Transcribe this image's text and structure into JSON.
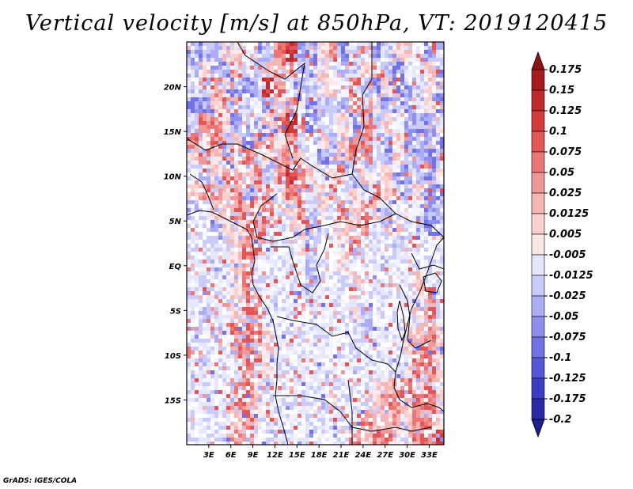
{
  "title": "Vertical velocity [m/s] at 850hPa, VT: 2019120415",
  "credit": "GrADS: IGES/COLA",
  "map": {
    "lon_range": [
      0,
      35
    ],
    "lat_range": [
      -20,
      25
    ],
    "lon_ticks": [
      {
        "value": 3,
        "label": "3E"
      },
      {
        "value": 6,
        "label": "6E"
      },
      {
        "value": 9,
        "label": "9E"
      },
      {
        "value": 12,
        "label": "12E"
      },
      {
        "value": 15,
        "label": "15E"
      },
      {
        "value": 18,
        "label": "18E"
      },
      {
        "value": 21,
        "label": "21E"
      },
      {
        "value": 24,
        "label": "24E"
      },
      {
        "value": 27,
        "label": "27E"
      },
      {
        "value": 30,
        "label": "30E"
      },
      {
        "value": 33,
        "label": "33E"
      }
    ],
    "lat_ticks": [
      {
        "value": 20,
        "label": "20N"
      },
      {
        "value": 15,
        "label": "15N"
      },
      {
        "value": 10,
        "label": "10N"
      },
      {
        "value": 5,
        "label": "5N"
      },
      {
        "value": 0,
        "label": "EQ"
      },
      {
        "value": -5,
        "label": "5S"
      },
      {
        "value": -10,
        "label": "10S"
      },
      {
        "value": -15,
        "label": "15S"
      }
    ]
  },
  "colorbar": {
    "levels": [
      {
        "label": "0.175",
        "color": "#a51c1c"
      },
      {
        "label": "0.15",
        "color": "#c12a2a"
      },
      {
        "label": "0.125",
        "color": "#d43c3c"
      },
      {
        "label": "0.1",
        "color": "#e25656"
      },
      {
        "label": "0.075",
        "color": "#ea7676"
      },
      {
        "label": "0.05",
        "color": "#f09898"
      },
      {
        "label": "0.025",
        "color": "#f6b6b6"
      },
      {
        "label": "0.0125",
        "color": "#fad0d0"
      },
      {
        "label": "0.005",
        "color": "#fde8e8"
      },
      {
        "label": "-0.005",
        "color": "#ffffff"
      },
      {
        "label": "-0.0125",
        "color": "#e6e6fd"
      },
      {
        "label": "-0.025",
        "color": "#cbcbfa"
      },
      {
        "label": "-0.05",
        "color": "#adadf6"
      },
      {
        "label": "-0.075",
        "color": "#8f8ff0"
      },
      {
        "label": "-0.1",
        "color": "#7272e6"
      },
      {
        "label": "-0.125",
        "color": "#5656d8"
      },
      {
        "label": "-0.175",
        "color": "#3c3cc4"
      },
      {
        "label": "-0.2",
        "color": "#2a2aa8"
      }
    ],
    "top_triangle_color": "#8c1616",
    "bottom_triangle_color": "#1e1e90"
  },
  "field": {
    "rows": [
      "ccmsslcmRSccsRcmlcmsslcm",
      "msccRlmsRRccslmmsRcclmsc",
      "lmRsccmSRlcmsslRmcsccmsl",
      "ccsRRmlcsRscmlcRRscccmsc",
      "mRRsclmsRSRcmlscRmslcccs",
      "RsRmscRRsRmlscsRRmcscmcc",
      "sRscRRmsRRslcmsRRlcsmccm",
      "lmsRRsRmRSRslsRmslsccmcs",
      "sRRsRmRRsRRmsRlsmRslmscc",
      "mlssRRsRlsRmslRsRsmlslcm",
      "llmssRRllsRmlssRlmsllcl",
      "lllmsRRlllsmllsRlllmllll",
      "llmlsRlllllmllslllmlllll",
      "llllsRlllllmlllslllllsll",
      "mlllsRRllllmlllllllllsRl",
      "lmllsRRllllllllsmllllsRl",
      "llmlRRRsllllllllmlllssRs",
      "llllRRRsllllllllllllsRRs",
      "lmlllRRsllllllllllllsRRs",
      "llllRRsllllllllllssRRsRs",
      "lmllRRsllllllslllsRRsRRs",
      "llllsRslllllllllRssRsRRs",
      "llllRRlllllllllRsRRsRRRS"
    ]
  }
}
